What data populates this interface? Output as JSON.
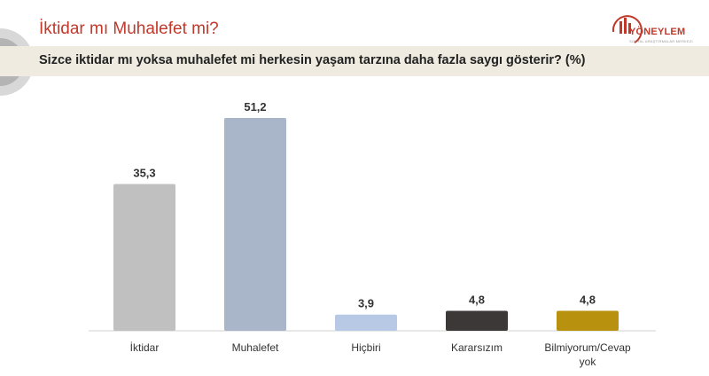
{
  "header": {
    "title": "İktidar mı Muhalefet mi?",
    "brand": "YÖNEYLEM",
    "brand_sub": "SOSYAL ARAŞTIRMALAR MERKEZİ"
  },
  "question": "Sizce iktidar mı yoksa muhalefet mi herkesin yaşam tarzına daha fazla saygı gösterir? (%)",
  "chart_data": {
    "type": "bar",
    "title": "Sizce iktidar mı yoksa muhalefet mi herkesin yaşam tarzına daha fazla saygı gösterir? (%)",
    "categories": [
      "İktidar",
      "Muhalefet",
      "Hiçbiri",
      "Kararsızım",
      "Bilmiyorum/Cevap yok"
    ],
    "values": [
      35.3,
      51.2,
      3.9,
      4.8,
      4.8
    ],
    "labels": [
      "35,3",
      "51,2",
      "3,9",
      "4,8",
      "4,8"
    ],
    "colors": [
      "#c0c0c0",
      "#a9b5c8",
      "#b8c9e6",
      "#3d3838",
      "#b8920f"
    ],
    "ylim": [
      0,
      51.2
    ],
    "grid": false,
    "legend": "none"
  }
}
